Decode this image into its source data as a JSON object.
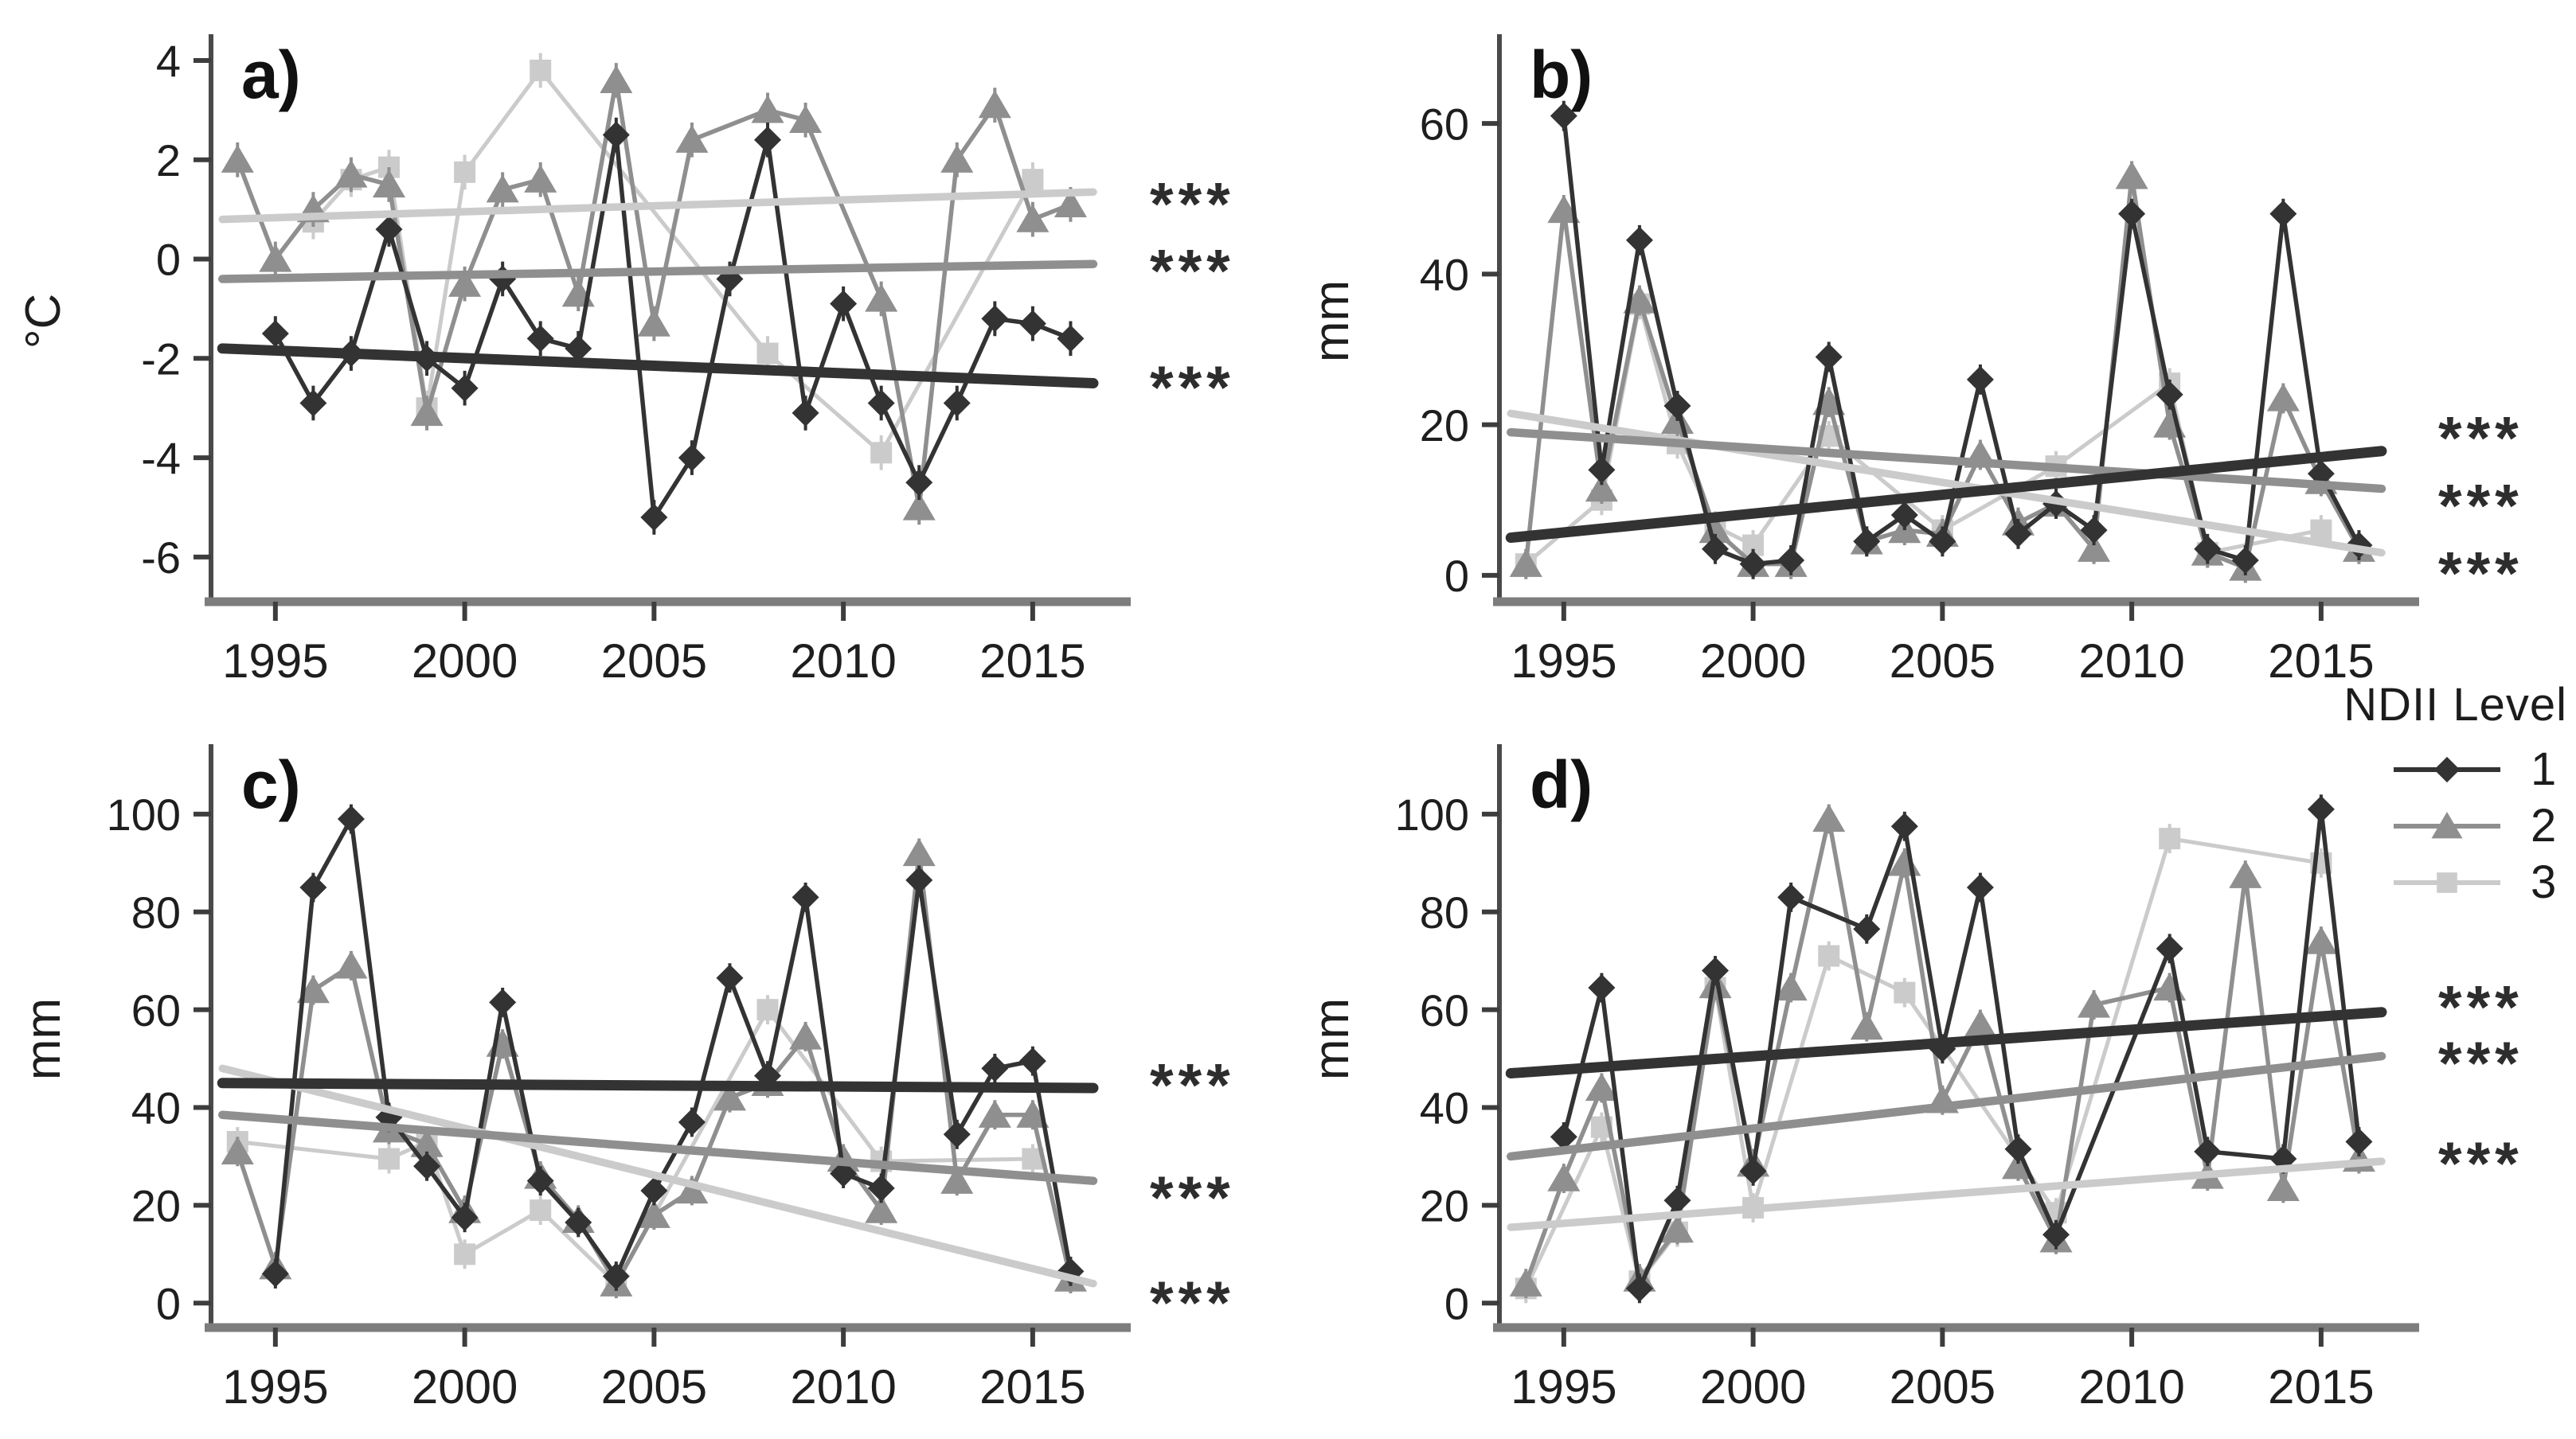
{
  "figure": {
    "background": "#ffffff"
  },
  "colors": {
    "level1": "#333333",
    "level2": "#8f8f8f",
    "level3": "#cbcbcb",
    "axis": "#4a4a4a",
    "baseline": "#7d7d7d",
    "tick": "#3d3d3d",
    "text": "#1e1e1e",
    "significance": "#2d2d2d"
  },
  "legend": {
    "title": "NDII Level",
    "items": [
      {
        "label": "1",
        "level": "level1",
        "shape": "diamond"
      },
      {
        "label": "2",
        "level": "level2",
        "shape": "triangle"
      },
      {
        "label": "3",
        "level": "level3",
        "shape": "square"
      }
    ]
  },
  "chart_data": [
    {
      "id": "a",
      "panel_label": "a)",
      "type": "line",
      "ylabel": "°C",
      "xlabel": "",
      "xlim": [
        1993.3,
        2017.0
      ],
      "ylim": [
        -6.9,
        4.4
      ],
      "x_ticks": [
        1995,
        2000,
        2005,
        2010,
        2015
      ],
      "y_ticks": [
        4,
        2,
        0,
        -2,
        -4,
        -6
      ],
      "x": [
        1994,
        1995,
        1996,
        1997,
        1998,
        1999,
        2000,
        2001,
        2002,
        2003,
        2004,
        2005,
        2006,
        2007,
        2008,
        2009,
        2010,
        2011,
        2012,
        2013,
        2014,
        2015,
        2016
      ],
      "error_bar_halfwidth": 0.35,
      "series": [
        {
          "name": "1",
          "level": "level1",
          "shape": "diamond",
          "values": [
            null,
            -1.5,
            -2.9,
            -1.9,
            0.6,
            -2.0,
            -2.6,
            -0.4,
            -1.6,
            -1.8,
            2.5,
            -5.2,
            -4.0,
            -0.4,
            2.4,
            -3.1,
            -0.9,
            -2.9,
            -4.5,
            -2.9,
            -1.2,
            -1.3,
            -1.6
          ]
        },
        {
          "name": "2",
          "level": "level2",
          "shape": "triangle",
          "values": [
            2.0,
            0.0,
            1.0,
            1.7,
            1.5,
            -3.1,
            -0.5,
            1.4,
            1.6,
            -0.7,
            3.6,
            -1.3,
            2.4,
            null,
            3.0,
            2.8,
            null,
            -0.8,
            -5.0,
            2.0,
            3.1,
            0.8,
            1.1
          ]
        },
        {
          "name": "3",
          "level": "level3",
          "shape": "square",
          "values": [
            null,
            null,
            0.75,
            1.6,
            1.85,
            -3.0,
            1.75,
            null,
            3.8,
            null,
            null,
            null,
            null,
            null,
            -1.9,
            null,
            null,
            -3.9,
            null,
            null,
            null,
            1.6,
            null
          ]
        }
      ],
      "trend_lines": [
        {
          "level": "level1",
          "y_start": -1.8,
          "y_end": -2.5,
          "significance": "***",
          "sig_y": -2.4
        },
        {
          "level": "level2",
          "y_start": -0.4,
          "y_end": -0.1,
          "significance": "***",
          "sig_y": -0.05
        },
        {
          "level": "level3",
          "y_start": 0.8,
          "y_end": 1.35,
          "significance": "***",
          "sig_y": 1.3
        }
      ]
    },
    {
      "id": "b",
      "panel_label": "b)",
      "type": "line",
      "ylabel": "mm",
      "xlabel": "",
      "xlim": [
        1993.3,
        2017.0
      ],
      "ylim": [
        -3.5,
        71
      ],
      "x_ticks": [
        1995,
        2000,
        2005,
        2010,
        2015
      ],
      "y_ticks": [
        0,
        20,
        40,
        60
      ],
      "x": [
        1994,
        1995,
        1996,
        1997,
        1998,
        1999,
        2000,
        2001,
        2002,
        2003,
        2004,
        2005,
        2006,
        2007,
        2008,
        2009,
        2010,
        2011,
        2012,
        2013,
        2014,
        2015,
        2016
      ],
      "error_bar_halfwidth": 2,
      "series": [
        {
          "name": "1",
          "level": "level1",
          "shape": "diamond",
          "values": [
            null,
            61,
            14,
            44.5,
            22.5,
            3.5,
            1.5,
            2,
            29,
            4.5,
            8,
            4.5,
            26,
            5.5,
            9.5,
            6,
            48,
            24,
            3.5,
            2,
            48,
            13.5,
            4
          ]
        },
        {
          "name": "2",
          "level": "level2",
          "shape": "triangle",
          "values": [
            1.5,
            48.5,
            11.5,
            36.5,
            20.5,
            6,
            1.5,
            1.5,
            23,
            4.5,
            6,
            5.5,
            16,
            7,
            9.5,
            3.5,
            53,
            20,
            3,
            1,
            23.5,
            12.5,
            3.5
          ]
        },
        {
          "name": "3",
          "level": "level3",
          "shape": "square",
          "values": [
            1.5,
            null,
            10,
            36,
            17.5,
            6.5,
            4,
            null,
            18.5,
            null,
            null,
            6,
            null,
            null,
            14.5,
            null,
            null,
            25.5,
            3,
            null,
            null,
            6,
            null
          ]
        }
      ],
      "trend_lines": [
        {
          "level": "level1",
          "y_start": 5,
          "y_end": 16.5,
          "significance": "***",
          "sig_y": 19.5
        },
        {
          "level": "level2",
          "y_start": 19,
          "y_end": 11.5,
          "significance": "***",
          "sig_y": 10.5
        },
        {
          "level": "level3",
          "y_start": 21.5,
          "y_end": 3,
          "significance": "***",
          "sig_y": 1.5
        }
      ]
    },
    {
      "id": "c",
      "panel_label": "c)",
      "type": "line",
      "ylabel": "mm",
      "xlabel": "",
      "xlim": [
        1993.3,
        2017.0
      ],
      "ylim": [
        -5,
        113
      ],
      "x_ticks": [
        1995,
        2000,
        2005,
        2010,
        2015
      ],
      "y_ticks": [
        0,
        20,
        40,
        60,
        80,
        100
      ],
      "x": [
        1994,
        1995,
        1996,
        1997,
        1998,
        1999,
        2000,
        2001,
        2002,
        2003,
        2004,
        2005,
        2006,
        2007,
        2008,
        2009,
        2010,
        2011,
        2012,
        2013,
        2014,
        2015,
        2016
      ],
      "error_bar_halfwidth": 3,
      "series": [
        {
          "name": "1",
          "level": "level1",
          "shape": "diamond",
          "values": [
            null,
            6,
            85,
            99,
            38,
            28,
            17.5,
            61.5,
            25,
            16.5,
            5.5,
            23,
            37,
            66.5,
            46.5,
            83,
            26.5,
            23.5,
            86.5,
            34.5,
            48,
            49.5,
            6.5
          ]
        },
        {
          "name": "2",
          "level": "level2",
          "shape": "triangle",
          "values": [
            31,
            7.5,
            64,
            69,
            35.5,
            32.5,
            19,
            53,
            26,
            17,
            4,
            18,
            23,
            42,
            45,
            54.5,
            29.5,
            19,
            92,
            25,
            38.5,
            38.5,
            5
          ]
        },
        {
          "name": "3",
          "level": "level3",
          "shape": "square",
          "values": [
            33,
            null,
            null,
            null,
            29.5,
            33,
            10,
            null,
            19,
            null,
            4,
            null,
            null,
            null,
            60,
            null,
            null,
            29,
            null,
            null,
            null,
            29.5,
            null
          ]
        }
      ],
      "trend_lines": [
        {
          "level": "level1",
          "y_start": 45,
          "y_end": 44,
          "significance": "***",
          "sig_y": 46.5
        },
        {
          "level": "level2",
          "y_start": 38.5,
          "y_end": 25,
          "significance": "***",
          "sig_y": 23.5
        },
        {
          "level": "level3",
          "y_start": 48,
          "y_end": 4,
          "significance": "***",
          "sig_y": 2
        }
      ]
    },
    {
      "id": "d",
      "panel_label": "d)",
      "type": "line",
      "ylabel": "mm",
      "xlabel": "",
      "xlim": [
        1993.3,
        2017.0
      ],
      "ylim": [
        -5,
        113
      ],
      "x_ticks": [
        1995,
        2000,
        2005,
        2010,
        2015
      ],
      "y_ticks": [
        0,
        20,
        40,
        60,
        80,
        100
      ],
      "x": [
        1994,
        1995,
        1996,
        1997,
        1998,
        1999,
        2000,
        2001,
        2002,
        2003,
        2004,
        2005,
        2006,
        2007,
        2008,
        2009,
        2010,
        2011,
        2012,
        2013,
        2014,
        2015,
        2016
      ],
      "error_bar_halfwidth": 3,
      "series": [
        {
          "name": "1",
          "level": "level1",
          "shape": "diamond",
          "values": [
            null,
            34,
            64.5,
            3,
            21,
            68,
            27,
            83,
            null,
            76.5,
            97.5,
            52,
            85,
            31.5,
            14,
            null,
            null,
            72.5,
            31,
            null,
            29.5,
            101,
            33
          ]
        },
        {
          "name": "2",
          "level": "level2",
          "shape": "triangle",
          "values": [
            4,
            25.5,
            44,
            5,
            15,
            65,
            28.5,
            64.5,
            99,
            56.5,
            90,
            41.5,
            57,
            28,
            13,
            61,
            null,
            64.5,
            26,
            87.5,
            23.5,
            74,
            29.5
          ]
        },
        {
          "name": "3",
          "level": "level3",
          "shape": "square",
          "values": [
            3,
            null,
            36,
            4.5,
            14.5,
            64.5,
            19.5,
            null,
            71,
            null,
            63.5,
            null,
            null,
            null,
            18.5,
            null,
            null,
            95,
            null,
            null,
            null,
            90,
            null
          ]
        }
      ],
      "trend_lines": [
        {
          "level": "level1",
          "y_start": 47,
          "y_end": 59.5,
          "significance": "***",
          "sig_y": 62.5
        },
        {
          "level": "level2",
          "y_start": 30,
          "y_end": 50.5,
          "significance": "***",
          "sig_y": 51
        },
        {
          "level": "level3",
          "y_start": 15.5,
          "y_end": 29,
          "significance": "***",
          "sig_y": 30.5
        }
      ]
    }
  ]
}
